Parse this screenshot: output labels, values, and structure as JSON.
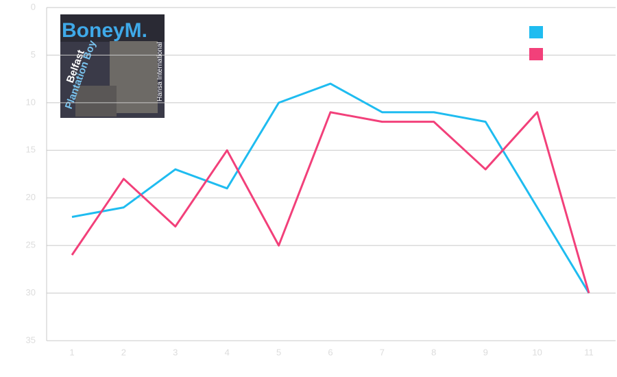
{
  "chart_data": {
    "type": "line",
    "categories": [
      "1",
      "2",
      "3",
      "4",
      "5",
      "6",
      "7",
      "8",
      "9",
      "10",
      "11"
    ],
    "series": [
      {
        "color": "#1fbcf0",
        "values": [
          22,
          21,
          17,
          19,
          10,
          8,
          11,
          11,
          12,
          21,
          30
        ]
      },
      {
        "color": "#f2407a",
        "values": [
          26,
          18,
          23,
          15,
          25,
          11,
          12,
          12,
          17,
          11,
          30
        ]
      }
    ],
    "ylim": [
      0,
      35
    ],
    "y_inverted": true,
    "yticks": [
      0,
      5,
      10,
      15,
      20,
      25,
      30,
      35
    ],
    "grid": true,
    "legend": "top-right"
  },
  "cover": {
    "band": "BoneyM.",
    "title_a": "Belfast",
    "title_b": "Plantation Boy",
    "label": "Hansa International"
  }
}
